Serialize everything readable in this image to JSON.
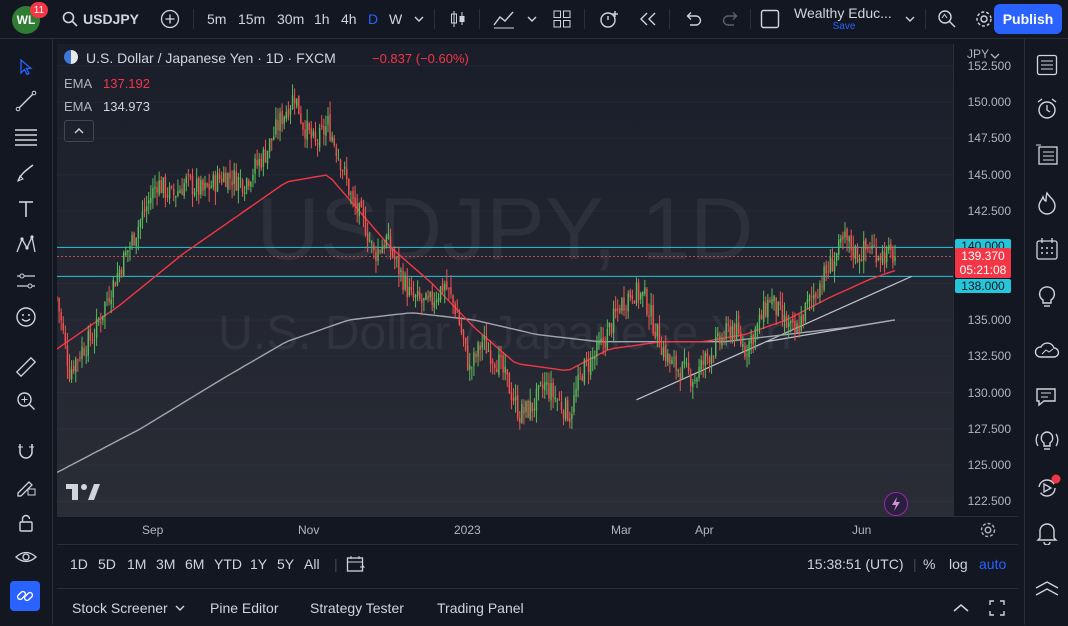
{
  "header": {
    "logo_text": "WL",
    "notification_count": "11",
    "symbol": "USDJPY",
    "timeframes": [
      "5m",
      "15m",
      "30m",
      "1h",
      "4h",
      "D",
      "W"
    ],
    "active_timeframe": "D",
    "layout_name": "Wealthy Educ...",
    "layout_status": "Save",
    "publish_label": "Publish"
  },
  "legend": {
    "title": "U.S. Dollar / Japanese Yen · 1D · FXCM",
    "change": "−0.837 (−0.60%)",
    "ema1_label": "EMA",
    "ema1_value": "137.192",
    "ema2_label": "EMA",
    "ema2_value": "134.973"
  },
  "watermark": {
    "line1": "USDJPY, 1D",
    "line2": "U.S. Dollar / Japanese Yen"
  },
  "price_scale": {
    "currency": "JPY",
    "labels": [
      "152.500",
      "150.000",
      "147.500",
      "145.000",
      "142.500",
      "140.000",
      "137.500",
      "135.000",
      "132.500",
      "130.000",
      "127.500",
      "125.000",
      "122.500"
    ],
    "badge_upper": "140.000",
    "badge_current_price": "139.370",
    "badge_countdown": "05:21:08",
    "badge_lower": "138.000"
  },
  "time_scale": {
    "labels": [
      "Sep",
      "Nov",
      "2023",
      "Mar",
      "Apr",
      "Jun"
    ]
  },
  "range_bar": {
    "ranges": [
      "1D",
      "5D",
      "1M",
      "3M",
      "6M",
      "YTD",
      "1Y",
      "5Y",
      "All"
    ],
    "clock": "15:38:51 (UTC)",
    "percent_label": "%",
    "log_label": "log",
    "auto_label": "auto"
  },
  "panels": {
    "tabs": [
      "Stock Screener",
      "Pine Editor",
      "Strategy Tester",
      "Trading Panel"
    ]
  },
  "colors": {
    "background": "#131722",
    "up": "#26a69a",
    "up_mark": "#5cb85c",
    "down": "#ef5350",
    "ema_fast": "#f23645",
    "ema_slow": "#a3a6af",
    "horizontal_line": "#26c6da",
    "accent": "#2962ff"
  },
  "chart_data": {
    "type": "candlestick",
    "symbol": "USDJPY",
    "interval": "1D",
    "y_range": [
      121.5,
      154
    ],
    "support_resistance": [
      140.0,
      138.0
    ],
    "current_price": 139.37,
    "close_path": [
      [
        0,
        136.5
      ],
      [
        6,
        131.5
      ],
      [
        12,
        133.0
      ],
      [
        18,
        134.0
      ],
      [
        24,
        136.5
      ],
      [
        30,
        138.5
      ],
      [
        36,
        140.5
      ],
      [
        42,
        142.5
      ],
      [
        48,
        144.5
      ],
      [
        55,
        143.5
      ],
      [
        62,
        144.5
      ],
      [
        70,
        143.8
      ],
      [
        80,
        145.0
      ],
      [
        90,
        144.5
      ],
      [
        100,
        146.5
      ],
      [
        108,
        149.0
      ],
      [
        114,
        150.5
      ],
      [
        118,
        148.5
      ],
      [
        124,
        147.0
      ],
      [
        130,
        148.5
      ],
      [
        136,
        146.0
      ],
      [
        142,
        143.0
      ],
      [
        148,
        141.5
      ],
      [
        152,
        139.5
      ],
      [
        158,
        140.5
      ],
      [
        164,
        138.5
      ],
      [
        170,
        136.5
      ],
      [
        178,
        136.0
      ],
      [
        186,
        137.5
      ],
      [
        192,
        135.5
      ],
      [
        198,
        131.5
      ],
      [
        204,
        133.5
      ],
      [
        212,
        132.0
      ],
      [
        218,
        130.0
      ],
      [
        222,
        128.5
      ],
      [
        228,
        129.0
      ],
      [
        234,
        130.5
      ],
      [
        240,
        129.5
      ],
      [
        246,
        128.5
      ],
      [
        252,
        131.5
      ],
      [
        258,
        132.5
      ],
      [
        264,
        134.0
      ],
      [
        270,
        136.0
      ],
      [
        276,
        137.0
      ],
      [
        282,
        136.5
      ],
      [
        288,
        134.0
      ],
      [
        294,
        132.0
      ],
      [
        300,
        131.5
      ],
      [
        306,
        131.0
      ],
      [
        312,
        132.5
      ],
      [
        318,
        133.5
      ],
      [
        324,
        134.5
      ],
      [
        330,
        133.0
      ],
      [
        336,
        134.5
      ],
      [
        342,
        136.5
      ],
      [
        348,
        135.0
      ],
      [
        354,
        134.0
      ],
      [
        360,
        136.0
      ],
      [
        366,
        137.5
      ],
      [
        372,
        139.0
      ],
      [
        378,
        140.5
      ],
      [
        384,
        139.5
      ],
      [
        390,
        140.0
      ],
      [
        396,
        139.5
      ],
      [
        402,
        139.4
      ]
    ],
    "ema_fast": [
      [
        0,
        133.0
      ],
      [
        30,
        136.0
      ],
      [
        60,
        139.5
      ],
      [
        90,
        142.5
      ],
      [
        110,
        144.5
      ],
      [
        130,
        145.0
      ],
      [
        142,
        143.0
      ],
      [
        160,
        140.0
      ],
      [
        180,
        137.5
      ],
      [
        200,
        134.5
      ],
      [
        220,
        132.0
      ],
      [
        245,
        131.5
      ],
      [
        265,
        133.0
      ],
      [
        290,
        133.5
      ],
      [
        310,
        133.5
      ],
      [
        330,
        134.0
      ],
      [
        350,
        135.0
      ],
      [
        370,
        136.5
      ],
      [
        390,
        137.8
      ],
      [
        402,
        138.4
      ]
    ],
    "ema_slow": [
      [
        0,
        124.5
      ],
      [
        40,
        127.5
      ],
      [
        80,
        131.0
      ],
      [
        110,
        133.5
      ],
      [
        140,
        135.0
      ],
      [
        170,
        135.5
      ],
      [
        200,
        135.0
      ],
      [
        230,
        134.0
      ],
      [
        260,
        133.5
      ],
      [
        290,
        133.5
      ],
      [
        320,
        133.5
      ],
      [
        350,
        134.0
      ],
      [
        380,
        134.5
      ],
      [
        402,
        135.0
      ]
    ],
    "trendlines": [
      {
        "from": [
          278,
          129.5
        ],
        "to": [
          410,
          138.0
        ]
      },
      {
        "from": [
          340,
          133.5
        ],
        "to": [
          402,
          135.0
        ]
      }
    ]
  }
}
